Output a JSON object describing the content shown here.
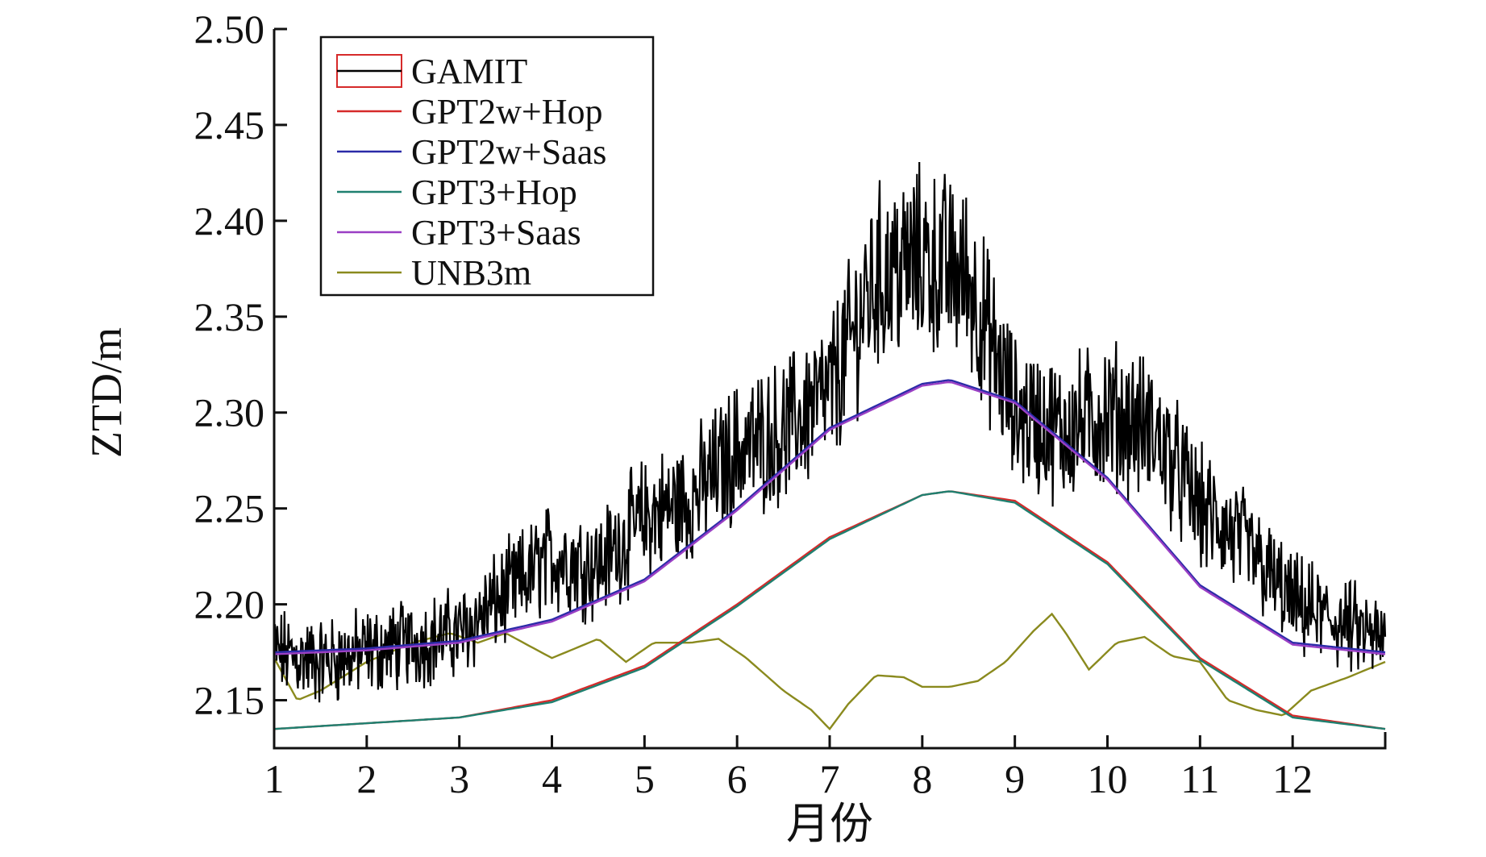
{
  "chart_data": {
    "type": "line",
    "title": "",
    "xlabel": "月份",
    "ylabel": "ZTD/m",
    "xlim": [
      1,
      13
    ],
    "ylim": [
      2.125,
      2.5
    ],
    "x_ticks": [
      1,
      2,
      3,
      4,
      5,
      6,
      7,
      8,
      9,
      10,
      11,
      12
    ],
    "x_tick_labels": [
      "1",
      "2",
      "3",
      "4",
      "5",
      "6",
      "7",
      "8",
      "9",
      "10",
      "11",
      "12"
    ],
    "y_ticks": [
      2.15,
      2.2,
      2.25,
      2.3,
      2.35,
      2.4,
      2.45,
      2.5
    ],
    "y_tick_labels": [
      "2.15",
      "2.20",
      "2.25",
      "2.30",
      "2.35",
      "2.40",
      "2.45",
      "2.50"
    ],
    "legend_position": "top-left",
    "series": [
      {
        "name": "GAMIT",
        "color": "#000000",
        "style": "noisy",
        "x": [
          1,
          1.5,
          2,
          2.5,
          3,
          3.5,
          4,
          4.5,
          5,
          5.5,
          6,
          6.5,
          7,
          7.5,
          8,
          8.5,
          9,
          9.5,
          10,
          10.5,
          11,
          11.5,
          12,
          12.5,
          13
        ],
        "values": [
          2.175,
          2.17,
          2.175,
          2.18,
          2.185,
          2.205,
          2.225,
          2.22,
          2.245,
          2.255,
          2.28,
          2.29,
          2.31,
          2.37,
          2.38,
          2.37,
          2.3,
          2.29,
          2.3,
          2.29,
          2.25,
          2.23,
          2.2,
          2.19,
          2.18
        ]
      },
      {
        "name": "GPT2w+Hop",
        "color": "#d62a2a",
        "x": [
          1,
          2,
          3,
          4,
          5,
          6,
          7,
          8,
          8.3,
          9,
          10,
          11,
          12,
          13
        ],
        "values": [
          2.135,
          2.138,
          2.141,
          2.15,
          2.168,
          2.2,
          2.235,
          2.257,
          2.259,
          2.254,
          2.222,
          2.172,
          2.142,
          2.135
        ]
      },
      {
        "name": "GPT2w+Saas",
        "color": "#2b2ba8",
        "x": [
          1,
          2,
          3,
          4,
          5,
          6,
          7,
          8,
          8.3,
          9,
          10,
          11,
          12,
          13
        ],
        "values": [
          2.175,
          2.177,
          2.181,
          2.192,
          2.213,
          2.25,
          2.292,
          2.315,
          2.317,
          2.306,
          2.266,
          2.21,
          2.18,
          2.175
        ]
      },
      {
        "name": "GPT3+Hop",
        "color": "#1f8070",
        "x": [
          1,
          2,
          3,
          4,
          5,
          6,
          7,
          8,
          8.3,
          9,
          10,
          11,
          12,
          13
        ],
        "values": [
          2.135,
          2.138,
          2.141,
          2.149,
          2.167,
          2.199,
          2.234,
          2.257,
          2.259,
          2.253,
          2.221,
          2.171,
          2.141,
          2.135
        ]
      },
      {
        "name": "GPT3+Saas",
        "color": "#9a3fc4",
        "x": [
          1,
          2,
          3,
          4,
          5,
          6,
          7,
          8,
          8.3,
          9,
          10,
          11,
          12,
          13
        ],
        "values": [
          2.174,
          2.176,
          2.18,
          2.191,
          2.212,
          2.249,
          2.291,
          2.314,
          2.316,
          2.305,
          2.265,
          2.209,
          2.179,
          2.174
        ]
      },
      {
        "name": "UNB3m",
        "color": "#8a8a1e",
        "x": [
          1,
          1.25,
          1.5,
          2,
          2.5,
          2.9,
          3.2,
          3.5,
          4,
          4.5,
          4.8,
          5.1,
          5.5,
          5.8,
          6.1,
          6.5,
          6.8,
          7,
          7.2,
          7.5,
          7.8,
          8,
          8.3,
          8.6,
          8.9,
          9.2,
          9.4,
          9.55,
          9.8,
          10.1,
          10.4,
          10.7,
          11,
          11.3,
          11.6,
          11.9,
          12.2,
          12.6,
          13
        ],
        "values": [
          2.172,
          2.15,
          2.155,
          2.17,
          2.18,
          2.185,
          2.18,
          2.185,
          2.172,
          2.182,
          2.17,
          2.18,
          2.18,
          2.182,
          2.172,
          2.155,
          2.145,
          2.135,
          2.148,
          2.163,
          2.162,
          2.157,
          2.157,
          2.16,
          2.17,
          2.186,
          2.195,
          2.185,
          2.166,
          2.18,
          2.183,
          2.173,
          2.17,
          2.15,
          2.145,
          2.142,
          2.155,
          2.162,
          2.17
        ]
      }
    ]
  }
}
